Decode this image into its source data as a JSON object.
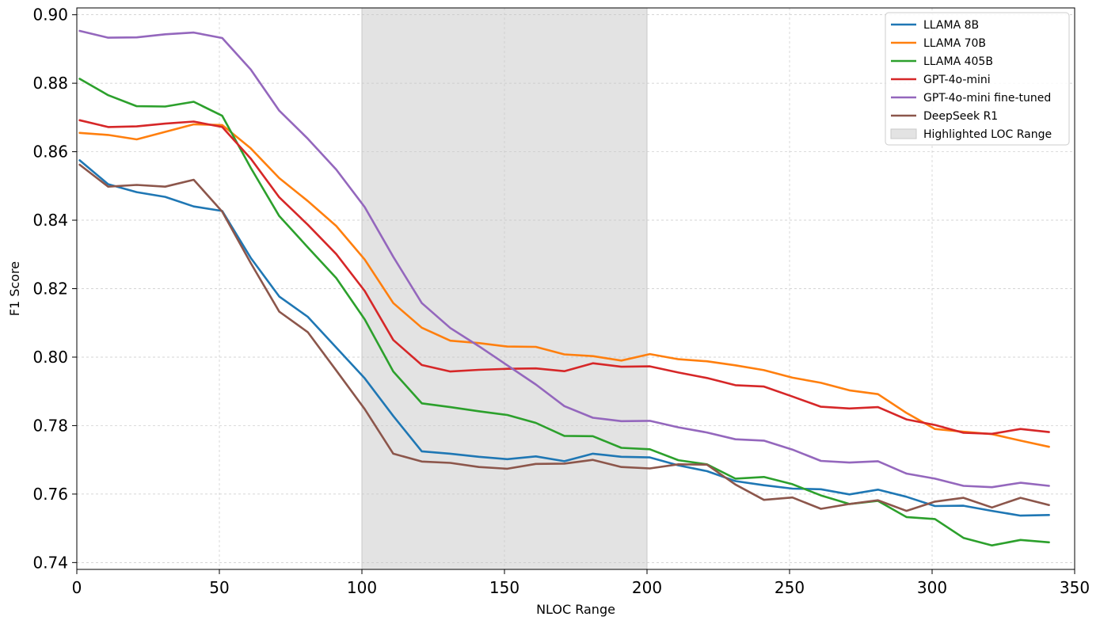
{
  "chart_data": {
    "type": "line",
    "title": "",
    "xlabel": "NLOC Range",
    "ylabel": "F1 Score",
    "xlim": [
      0,
      350
    ],
    "ylim": [
      0.738,
      0.902
    ],
    "xticks": [
      0,
      50,
      100,
      150,
      200,
      250,
      300,
      350
    ],
    "xtick_labels": [
      "0",
      "50",
      "100",
      "150",
      "200",
      "250",
      "300",
      "350"
    ],
    "yticks": [
      0.74,
      0.76,
      0.78,
      0.8,
      0.82,
      0.84,
      0.86,
      0.88,
      0.9
    ],
    "ytick_labels": [
      "0.74",
      "0.76",
      "0.78",
      "0.80",
      "0.82",
      "0.84",
      "0.86",
      "0.88",
      "0.90"
    ],
    "grid": true,
    "legend_position": "top-right",
    "highlight": {
      "label": "Highlighted LOC Range",
      "x_range": [
        100,
        200
      ],
      "color": "#d9d9d9"
    },
    "x": [
      1,
      11,
      21,
      31,
      41,
      51,
      61,
      71,
      81,
      91,
      101,
      111,
      121,
      131,
      141,
      151,
      161,
      171,
      181,
      191,
      201,
      211,
      221,
      231,
      241,
      251,
      261,
      271,
      281,
      291,
      301,
      311,
      321,
      331,
      341
    ],
    "series": [
      {
        "name": "LLAMA 8B",
        "color": "#1f77b4",
        "values": [
          0.8575,
          0.8505,
          0.8482,
          0.8468,
          0.844,
          0.8427,
          0.829,
          0.8177,
          0.8118,
          0.8028,
          0.7938,
          0.7828,
          0.7725,
          0.7718,
          0.7709,
          0.7702,
          0.771,
          0.7696,
          0.7718,
          0.7709,
          0.7707,
          0.7684,
          0.7667,
          0.7638,
          0.7626,
          0.7616,
          0.7614,
          0.7599,
          0.7613,
          0.7592,
          0.7565,
          0.7566,
          0.7551,
          0.7537,
          0.7539
        ]
      },
      {
        "name": "LLAMA 70B",
        "color": "#ff7f0e",
        "values": [
          0.8655,
          0.8649,
          0.8636,
          0.8658,
          0.868,
          0.8678,
          0.861,
          0.8523,
          0.8456,
          0.8383,
          0.8285,
          0.8158,
          0.8086,
          0.8048,
          0.8041,
          0.8031,
          0.803,
          0.8008,
          0.8003,
          0.799,
          0.8009,
          0.7994,
          0.7988,
          0.7976,
          0.7962,
          0.794,
          0.7925,
          0.7903,
          0.7892,
          0.7837,
          0.779,
          0.7782,
          0.7775,
          0.7756,
          0.7738
        ]
      },
      {
        "name": "LLAMA 405B",
        "color": "#2ca02c",
        "values": [
          0.8813,
          0.8765,
          0.8733,
          0.8732,
          0.8746,
          0.8705,
          0.8553,
          0.8412,
          0.8321,
          0.8231,
          0.811,
          0.7958,
          0.7865,
          0.7854,
          0.7842,
          0.7831,
          0.7808,
          0.777,
          0.7769,
          0.7735,
          0.7731,
          0.7699,
          0.7687,
          0.7645,
          0.765,
          0.7629,
          0.7596,
          0.7571,
          0.758,
          0.7533,
          0.7527,
          0.7472,
          0.745,
          0.7466,
          0.7459
        ]
      },
      {
        "name": "GPT-4o-mini",
        "color": "#d62728",
        "values": [
          0.8692,
          0.8672,
          0.8674,
          0.8682,
          0.8688,
          0.8672,
          0.858,
          0.8467,
          0.8387,
          0.8301,
          0.8193,
          0.805,
          0.7977,
          0.7958,
          0.7963,
          0.7966,
          0.7967,
          0.7959,
          0.7982,
          0.7972,
          0.7973,
          0.7955,
          0.7939,
          0.7918,
          0.7914,
          0.7885,
          0.7855,
          0.785,
          0.7854,
          0.7818,
          0.7802,
          0.7779,
          0.7776,
          0.779,
          0.7781
        ]
      },
      {
        "name": "GPT-4o-mini fine-tuned",
        "color": "#9467bd",
        "values": [
          0.8953,
          0.8933,
          0.8934,
          0.8943,
          0.8948,
          0.8932,
          0.884,
          0.872,
          0.8638,
          0.8548,
          0.8438,
          0.8293,
          0.8158,
          0.8085,
          0.8032,
          0.7976,
          0.792,
          0.7857,
          0.7823,
          0.7813,
          0.7814,
          0.7795,
          0.778,
          0.776,
          0.7756,
          0.773,
          0.7697,
          0.7692,
          0.7696,
          0.766,
          0.7645,
          0.7624,
          0.762,
          0.7633,
          0.7624
        ]
      },
      {
        "name": "DeepSeek R1",
        "color": "#8c564b",
        "values": [
          0.8562,
          0.8498,
          0.8503,
          0.8498,
          0.8518,
          0.8425,
          0.8275,
          0.8133,
          0.8073,
          0.7961,
          0.7848,
          0.7718,
          0.7695,
          0.7691,
          0.7679,
          0.7674,
          0.7688,
          0.7689,
          0.77,
          0.7679,
          0.7675,
          0.7687,
          0.7686,
          0.7628,
          0.7583,
          0.759,
          0.7557,
          0.7571,
          0.7582,
          0.7551,
          0.7578,
          0.7589,
          0.7561,
          0.7589,
          0.7568
        ]
      }
    ]
  }
}
